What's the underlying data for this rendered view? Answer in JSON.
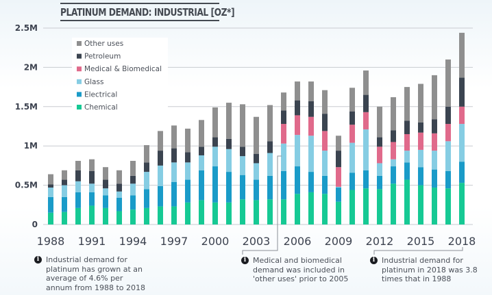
{
  "chart_data": {
    "type": "bar",
    "stacked": true,
    "title": "PLATINUM DEMAND: INDUSTRIAL [OZ*]",
    "xlabel": "",
    "ylabel": "",
    "unit": "thousand oz",
    "ylim": [
      0,
      2500
    ],
    "yticks": [
      0,
      500,
      1000,
      1500,
      2000,
      2500
    ],
    "ytick_labels": [
      "0",
      "0.5M",
      "1M",
      "1.5M",
      "2M",
      "2.5M"
    ],
    "xtick_labels": [
      "1988",
      "1991",
      "1994",
      "1997",
      "2000",
      "2003",
      "2006",
      "2009",
      "2012",
      "2015",
      "2018"
    ],
    "grid": true,
    "legend_position": "top-left",
    "categories": [
      "1988",
      "1989",
      "1990",
      "1991",
      "1992",
      "1993",
      "1994",
      "1995",
      "1996",
      "1997",
      "1998",
      "1999",
      "2000",
      "2001",
      "2002",
      "2003",
      "2004",
      "2005",
      "2006",
      "2007",
      "2008",
      "2009",
      "2010",
      "2011",
      "2012",
      "2013",
      "2014",
      "2015",
      "2016",
      "2017",
      "2018"
    ],
    "series": [
      {
        "name": "Chemical",
        "color": "#16c994",
        "values": [
          150,
          160,
          210,
          240,
          210,
          170,
          190,
          210,
          230,
          230,
          280,
          310,
          280,
          280,
          320,
          310,
          320,
          320,
          390,
          410,
          390,
          290,
          440,
          460,
          450,
          520,
          570,
          500,
          470,
          460,
          530
        ]
      },
      {
        "name": "Electrical",
        "color": "#1a9bc8",
        "values": [
          200,
          190,
          200,
          170,
          160,
          170,
          180,
          240,
          260,
          310,
          290,
          380,
          460,
          390,
          310,
          260,
          300,
          360,
          350,
          260,
          230,
          180,
          220,
          230,
          170,
          220,
          220,
          230,
          230,
          220,
          270
        ]
      },
      {
        "name": "Glass",
        "color": "#86cde3",
        "values": [
          120,
          150,
          140,
          110,
          90,
          80,
          150,
          220,
          260,
          250,
          220,
          190,
          250,
          290,
          240,
          210,
          290,
          350,
          400,
          460,
          320,
          10,
          380,
          520,
          160,
          90,
          150,
          220,
          240,
          380,
          480
        ]
      },
      {
        "name": "Medical & Biomedical",
        "color": "#e06a8b",
        "values": [
          0,
          0,
          0,
          0,
          0,
          0,
          0,
          0,
          0,
          0,
          0,
          0,
          0,
          0,
          0,
          0,
          0,
          250,
          250,
          240,
          250,
          250,
          230,
          220,
          210,
          220,
          210,
          220,
          220,
          220,
          220
        ]
      },
      {
        "name": "Petroleum",
        "color": "#3b4450",
        "values": [
          40,
          70,
          140,
          160,
          110,
          100,
          100,
          120,
          190,
          180,
          130,
          110,
          120,
          130,
          120,
          120,
          150,
          170,
          190,
          200,
          220,
          210,
          170,
          220,
          120,
          150,
          170,
          130,
          180,
          220,
          370
        ]
      },
      {
        "name": "Other uses",
        "color": "#8f8f8f",
        "values": [
          130,
          120,
          120,
          150,
          160,
          170,
          190,
          220,
          250,
          290,
          300,
          340,
          380,
          460,
          540,
          470,
          460,
          230,
          240,
          250,
          300,
          190,
          300,
          310,
          390,
          420,
          430,
          490,
          560,
          600,
          570
        ]
      }
    ],
    "legend_order": [
      "Other uses",
      "Petroleum",
      "Medical & Biomedical",
      "Glass",
      "Electrical",
      "Chemical"
    ],
    "annotations": [
      {
        "text": "Industrial demand for platinum has grown at an average of 4.6% per annum from 1988 to 2018"
      },
      {
        "text": "Medical and biomedical demand was included in 'other uses' prior to 2005",
        "anchor": "2005"
      },
      {
        "text": "Industrial demand for platinum in 2018 was 3.8 times that in 1988",
        "anchor": "2018"
      }
    ]
  },
  "notes": {
    "growth": [
      "Industrial demand for",
      "platinum has grown at an",
      "average of 4.6% per",
      "annum from 1988 to 2018"
    ],
    "medical": [
      "Medical and biomedical",
      "demand was included in",
      "'other uses' prior to 2005"
    ],
    "ratio": [
      "Industrial demand for",
      "platinum in 2018 was 3.8",
      "times that in 1988"
    ],
    "icon_glyph": "i"
  }
}
